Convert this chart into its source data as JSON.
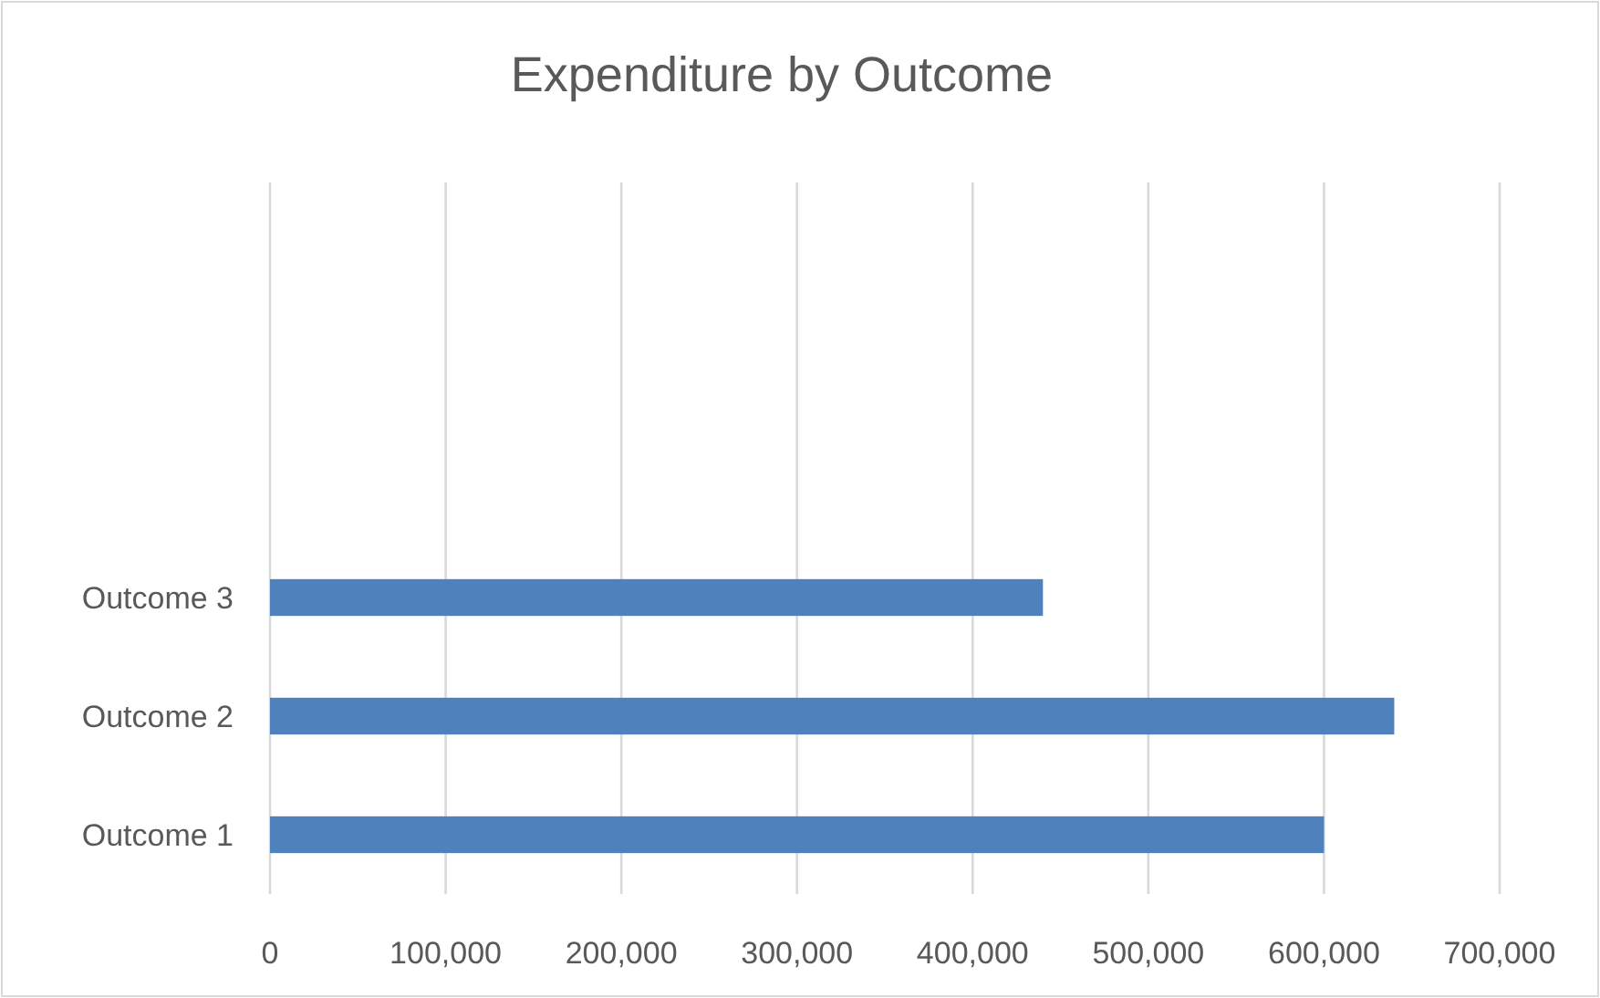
{
  "chart_data": {
    "type": "bar",
    "title": "Expenditure by Outcome",
    "orientation": "horizontal",
    "categories": [
      null,
      null,
      null,
      "Outcome 3",
      "Outcome 2",
      "Outcome 1"
    ],
    "values": [
      null,
      null,
      null,
      440000,
      640000,
      600000
    ],
    "color": "#4f81bd",
    "xlim": [
      0,
      700000
    ],
    "xticks": [
      0,
      {
        "value": 100000,
        "label": "100,000"
      },
      {
        "value": 200000,
        "label": "200,000"
      },
      {
        "value": 300000,
        "label": "300,000"
      },
      {
        "value": 400000,
        "label": "400,000"
      },
      {
        "value": 500000,
        "label": "500,000"
      },
      {
        "value": 600000,
        "label": "600,000"
      },
      {
        "value": 700000,
        "label": "700,000"
      }
    ],
    "grid": "x"
  }
}
